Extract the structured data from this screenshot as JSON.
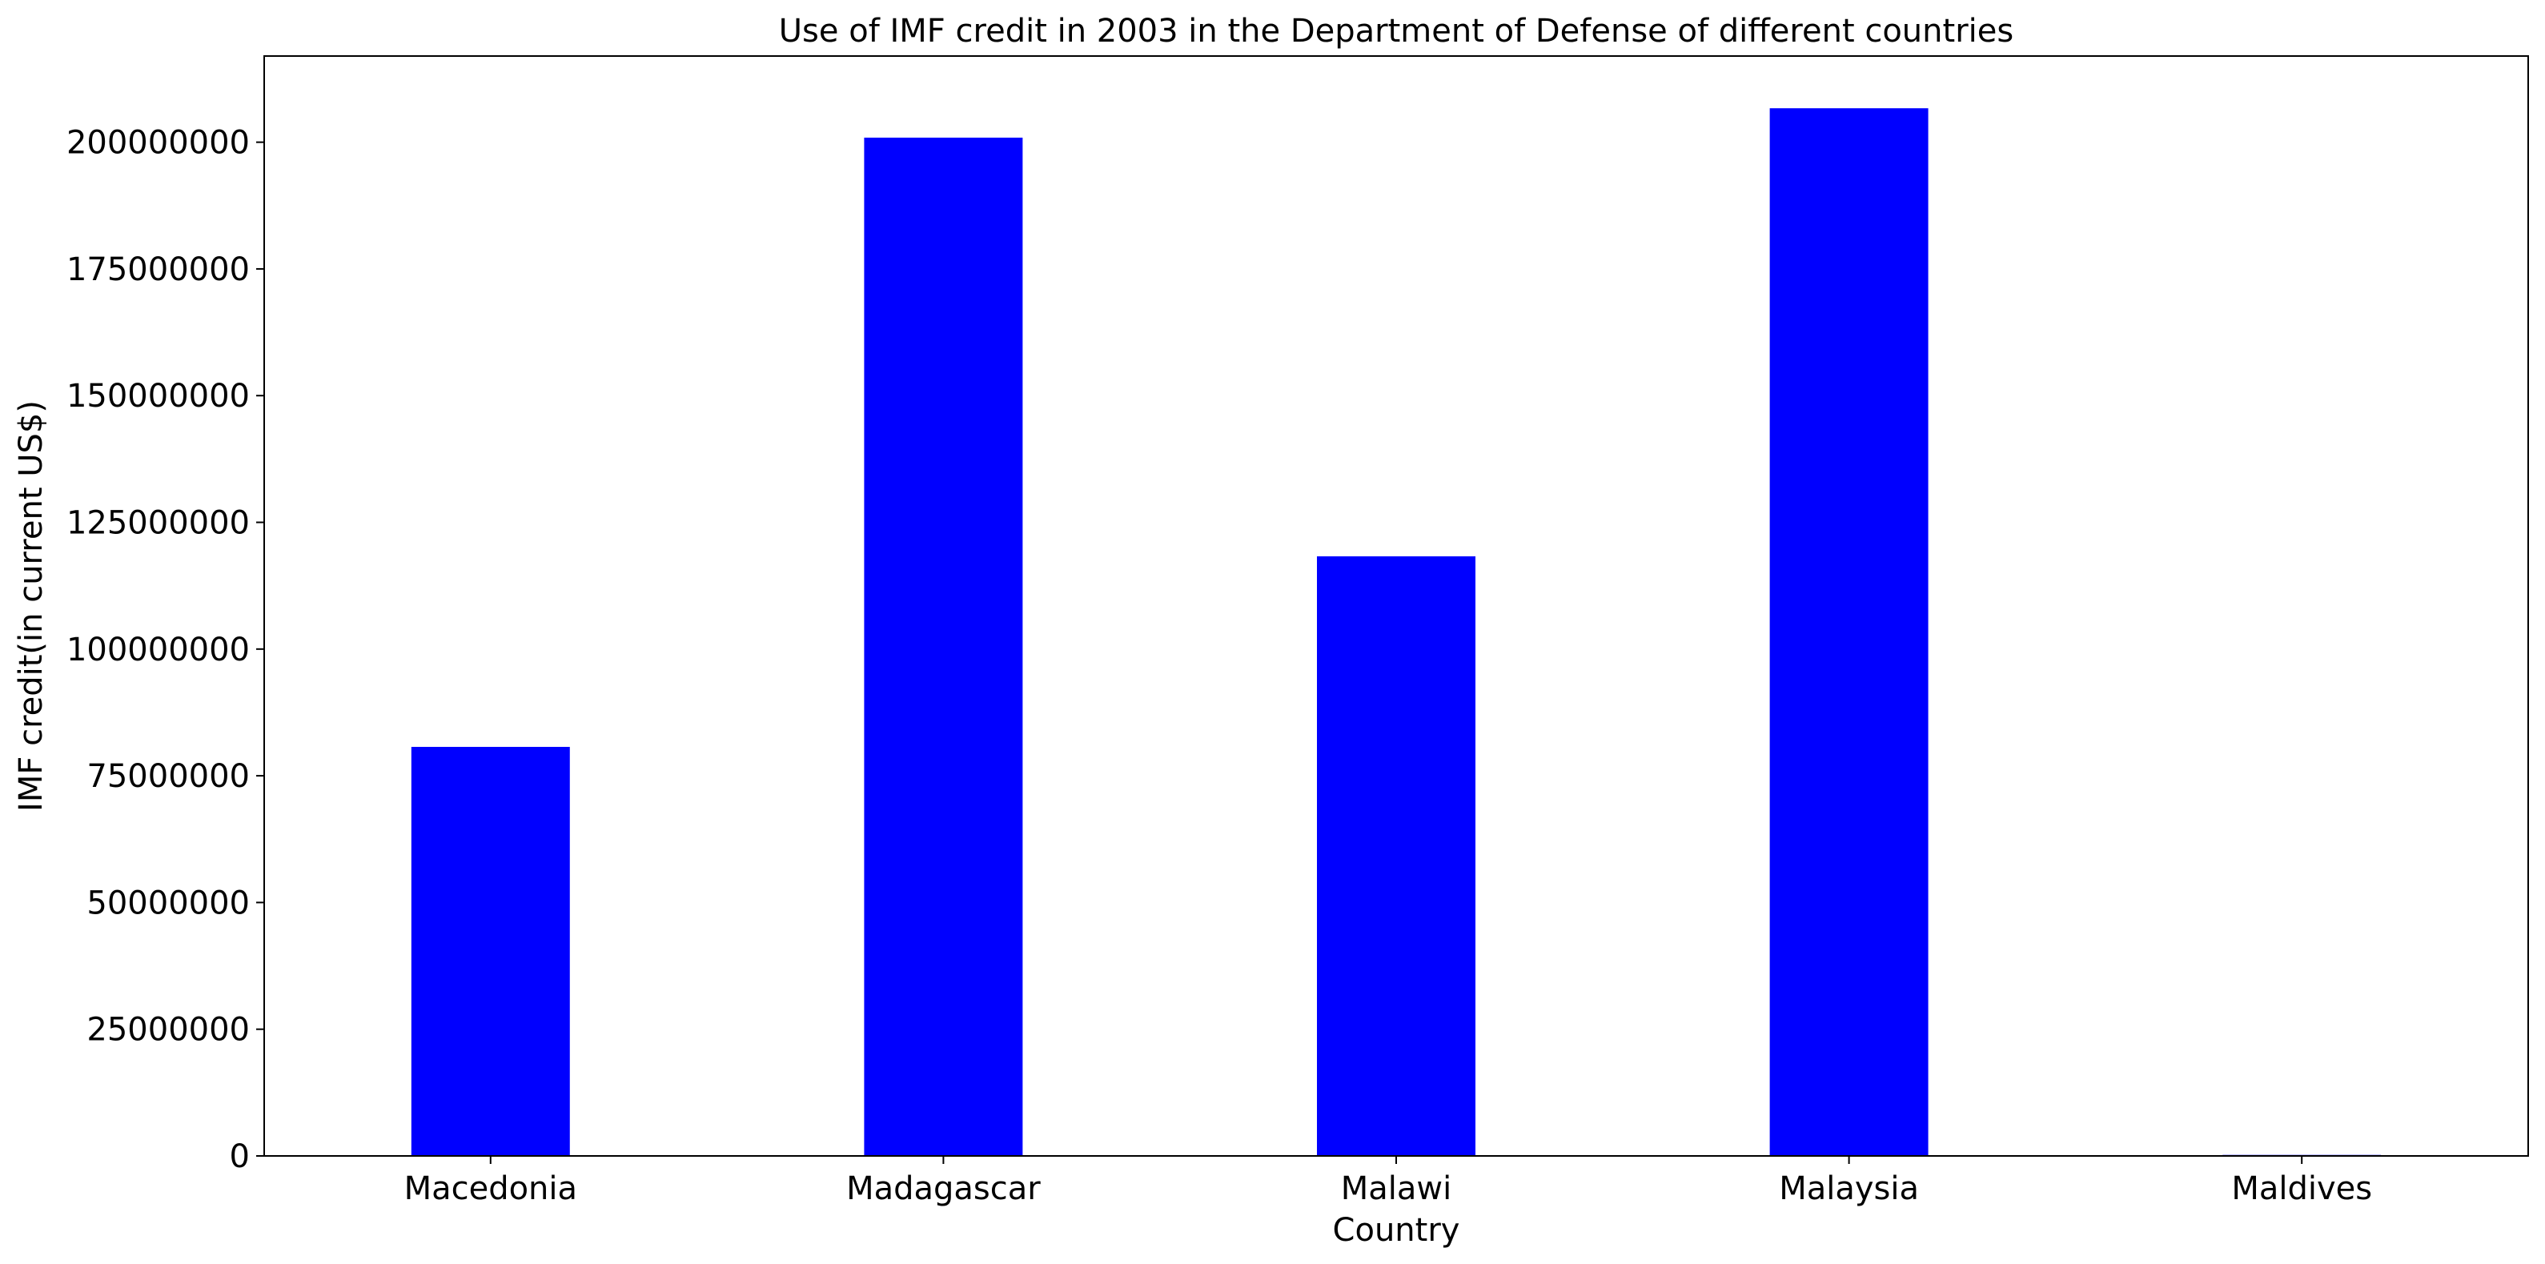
{
  "chart_data": {
    "type": "bar",
    "title": "Use of IMF credit in 2003 in the Department of Defense of different countries",
    "xlabel": "Country",
    "ylabel": "IMF credit(in current US$)",
    "categories": [
      "Macedonia",
      "Madagascar",
      "Malawi",
      "Malaysia",
      "Maldives"
    ],
    "values": [
      80700000,
      200900000,
      118300000,
      206700000,
      200000
    ],
    "ylim": [
      0,
      217000000
    ],
    "yticks": [
      0,
      25000000,
      50000000,
      75000000,
      100000000,
      125000000,
      150000000,
      175000000,
      200000000
    ],
    "ytick_labels": [
      "0",
      "25000000",
      "50000000",
      "75000000",
      "100000000",
      "125000000",
      "150000000",
      "175000000",
      "200000000"
    ],
    "bar_color": "#0000ff",
    "grid": false,
    "legend": "none"
  }
}
